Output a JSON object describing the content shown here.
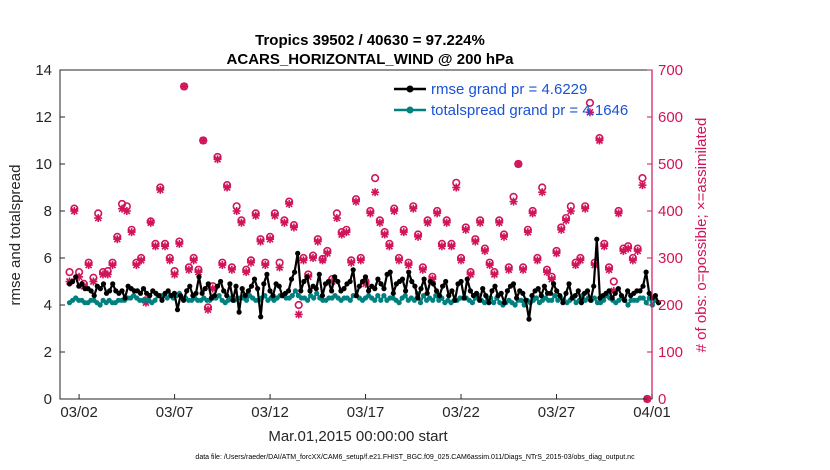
{
  "chart_data": {
    "type": "line",
    "title": "Tropics 39502 / 40630 = 97.224%",
    "subtitle": "ACARS_HORIZONTAL_WIND @ 200 hPa",
    "xlabel": "Mar.01,2015 00:00:00 start",
    "ylabel_left": "rmse and totalspread",
    "ylabel_right": "# of obs: o=possible; ×=assimilated",
    "footnote": "data file: /Users/raeder/DAI/ATM_forcXX/CAM6_setup/f.e21.FHIST_BGC.f09_025.CAM6assim.011/Diags_NTrS_2015-03/obs_diag_output.nc",
    "xlim": [
      1,
      32
    ],
    "ylim_left": [
      0,
      14
    ],
    "ylim_right": [
      0,
      700
    ],
    "x_ticks": [
      2,
      7,
      12,
      17,
      22,
      27,
      32
    ],
    "x_tick_labels": [
      "03/02",
      "03/07",
      "03/12",
      "03/17",
      "03/22",
      "03/27",
      "04/01"
    ],
    "y_ticks_left": [
      0,
      2,
      4,
      6,
      8,
      10,
      12,
      14
    ],
    "y_ticks_right": [
      0,
      100,
      200,
      300,
      400,
      500,
      600,
      700
    ],
    "legend_location": "top-right",
    "colors": {
      "rmse": "#000000",
      "spread": "#00807f",
      "obs": "#d1145a",
      "legend_text": "#1a52d6",
      "axis_right": "#d1145a"
    },
    "series": [
      {
        "name": "rmse grand pr = 4.6229",
        "axis": "left",
        "values": [
          4.9,
          5.0,
          5.2,
          4.8,
          4.9,
          4.7,
          4.7,
          4.6,
          4.4,
          4.8,
          4.7,
          4.9,
          4.5,
          4.6,
          4.9,
          4.6,
          4.5,
          4.6,
          4.3,
          4.8,
          4.7,
          4.6,
          4.6,
          4.5,
          4.7,
          4.5,
          4.4,
          4.6,
          4.5,
          4.4,
          4.2,
          4.5,
          4.6,
          4.4,
          4.5,
          3.8,
          4.4,
          4.2,
          4.6,
          4.8,
          4.4,
          4.5,
          5.2,
          4.5,
          4.7,
          4.9,
          4.3,
          4.4,
          4.8,
          5.0,
          4.6,
          4.4,
          4.9,
          4.2,
          4.8,
          3.7,
          4.7,
          4.4,
          4.6,
          4.8,
          5.1,
          4.7,
          3.5,
          4.9,
          5.3,
          4.6,
          4.4,
          4.9,
          4.8,
          4.4,
          4.5,
          4.6,
          5.1,
          5.4,
          6.2,
          4.6,
          5.0,
          5.2,
          4.6,
          4.8,
          4.7,
          5.3,
          4.4,
          4.9,
          5.0,
          4.6,
          5.2,
          5.0,
          4.6,
          4.7,
          4.9,
          5.0,
          5.5,
          4.4,
          4.8,
          5.0,
          5.2,
          4.6,
          4.8,
          4.7,
          5.1,
          4.9,
          4.7,
          5.3,
          5.4,
          4.5,
          4.9,
          5.0,
          5.1,
          4.6,
          5.4,
          5.0,
          4.8,
          4.3,
          4.7,
          5.1,
          4.5,
          5.0,
          4.9,
          4.6,
          4.4,
          4.8,
          5.0,
          4.4,
          4.6,
          4.2,
          4.9,
          5.0,
          4.3,
          5.1,
          4.6,
          4.4,
          4.5,
          4.2,
          4.7,
          4.4,
          4.1,
          4.6,
          4.8,
          4.4,
          4.5,
          4.1,
          4.6,
          4.8,
          4.9,
          4.3,
          4.6,
          4.5,
          4.2,
          3.4,
          4.4,
          4.6,
          4.7,
          4.4,
          4.8,
          4.5,
          4.5,
          4.9,
          4.6,
          4.4,
          4.1,
          4.5,
          4.9,
          4.3,
          4.4,
          4.6,
          4.1,
          4.5,
          4.6,
          4.2,
          4.8,
          6.8,
          4.3,
          4.4,
          4.5,
          4.6,
          4.3,
          4.5,
          4.7,
          4.4,
          4.2,
          4.6,
          4.4,
          4.5,
          4.6,
          4.6,
          4.8,
          5.4,
          4.5,
          4.3,
          4.4,
          4.1
        ],
        "style": "line+marker"
      },
      {
        "name": "totalspread grand pr = 4.1646",
        "axis": "left",
        "values": [
          4.1,
          4.2,
          4.3,
          4.2,
          4.2,
          4.1,
          4.1,
          4.2,
          4.2,
          4.1,
          4.0,
          4.2,
          4.1,
          4.2,
          4.1,
          4.1,
          4.2,
          4.2,
          4.2,
          4.3,
          4.3,
          4.4,
          4.3,
          4.2,
          4.2,
          4.2,
          4.2,
          4.1,
          4.2,
          4.4,
          4.4,
          4.4,
          4.3,
          4.4,
          4.3,
          4.4,
          4.5,
          4.3,
          4.3,
          4.2,
          4.2,
          4.3,
          4.2,
          4.2,
          4.3,
          4.2,
          4.2,
          4.3,
          4.3,
          4.4,
          4.2,
          4.1,
          4.2,
          4.3,
          4.2,
          4.3,
          4.3,
          4.3,
          4.2,
          4.4,
          4.3,
          4.2,
          4.2,
          4.3,
          4.4,
          4.2,
          4.3,
          4.2,
          4.3,
          4.4,
          4.4,
          4.3,
          4.3,
          4.4,
          4.6,
          4.4,
          4.3,
          4.3,
          4.2,
          4.4,
          4.3,
          4.5,
          4.3,
          4.2,
          4.2,
          4.3,
          4.3,
          4.4,
          4.3,
          4.2,
          4.3,
          4.3,
          4.2,
          4.4,
          4.4,
          4.3,
          4.2,
          4.3,
          4.4,
          4.3,
          4.2,
          4.4,
          4.2,
          4.4,
          4.2,
          4.3,
          4.3,
          4.2,
          4.1,
          4.3,
          4.4,
          4.2,
          4.3,
          4.2,
          4.5,
          4.1,
          4.4,
          4.2,
          4.3,
          4.2,
          4.4,
          4.2,
          4.3,
          4.1,
          4.2,
          4.1,
          4.2,
          4.2,
          4.3,
          4.3,
          4.3,
          4.2,
          4.1,
          4.3,
          4.4,
          4.2,
          4.1,
          4.3,
          4.3,
          4.1,
          4.3,
          4.1,
          4.0,
          4.1,
          4.2,
          4.1,
          4.0,
          4.2,
          4.2,
          4.0,
          4.2,
          4.1,
          4.2,
          4.3,
          4.1,
          4.2,
          4.3,
          4.2,
          4.2,
          4.4,
          4.2,
          4.3,
          4.2,
          4.1,
          4.2,
          4.3,
          4.1,
          4.2,
          4.4,
          4.2,
          4.3,
          4.2,
          4.3,
          4.1,
          4.1,
          4.2,
          4.4,
          4.3,
          4.2,
          4.1,
          4.2,
          4.3,
          4.2,
          4.0,
          4.2,
          4.2,
          4.2,
          4.3,
          4.3,
          4.1,
          4.3,
          4.0,
          4.2,
          4.1
        ],
        "style": "line+marker"
      }
    ],
    "obs_possible": [
      [
        1.5,
        270
      ],
      [
        1.75,
        405
      ],
      [
        2.0,
        270
      ],
      [
        2.25,
        245
      ],
      [
        2.5,
        290
      ],
      [
        2.75,
        258
      ],
      [
        3.0,
        395
      ],
      [
        3.25,
        270
      ],
      [
        3.5,
        272
      ],
      [
        3.75,
        290
      ],
      [
        4.0,
        345
      ],
      [
        4.25,
        415
      ],
      [
        4.5,
        410
      ],
      [
        4.75,
        360
      ],
      [
        5.0,
        290
      ],
      [
        5.25,
        300
      ],
      [
        5.5,
        210
      ],
      [
        5.75,
        378
      ],
      [
        6.0,
        330
      ],
      [
        6.25,
        450
      ],
      [
        6.5,
        330
      ],
      [
        6.75,
        300
      ],
      [
        7.0,
        272
      ],
      [
        7.25,
        335
      ],
      [
        7.5,
        665
      ],
      [
        7.75,
        280
      ],
      [
        8.0,
        300
      ],
      [
        8.25,
        275
      ],
      [
        8.5,
        550
      ],
      [
        8.75,
        195
      ],
      [
        9.0,
        240
      ],
      [
        9.25,
        515
      ],
      [
        9.5,
        290
      ],
      [
        9.75,
        455
      ],
      [
        10.0,
        280
      ],
      [
        10.25,
        410
      ],
      [
        10.5,
        380
      ],
      [
        10.75,
        275
      ],
      [
        11.0,
        295
      ],
      [
        11.25,
        395
      ],
      [
        11.5,
        340
      ],
      [
        11.75,
        290
      ],
      [
        12.0,
        345
      ],
      [
        12.25,
        395
      ],
      [
        12.5,
        290
      ],
      [
        12.75,
        380
      ],
      [
        13.0,
        420
      ],
      [
        13.25,
        370
      ],
      [
        13.5,
        200
      ],
      [
        13.75,
        300
      ],
      [
        14.0,
        265
      ],
      [
        14.25,
        305
      ],
      [
        14.5,
        340
      ],
      [
        14.75,
        298
      ],
      [
        15.0,
        315
      ],
      [
        15.25,
        255
      ],
      [
        15.5,
        395
      ],
      [
        15.75,
        355
      ],
      [
        16.0,
        360
      ],
      [
        16.25,
        295
      ],
      [
        16.5,
        425
      ],
      [
        16.75,
        300
      ],
      [
        17.0,
        250
      ],
      [
        17.25,
        400
      ],
      [
        17.5,
        470
      ],
      [
        17.75,
        380
      ],
      [
        18.0,
        355
      ],
      [
        18.25,
        330
      ],
      [
        18.5,
        405
      ],
      [
        18.75,
        300
      ],
      [
        19.0,
        360
      ],
      [
        19.25,
        290
      ],
      [
        19.5,
        410
      ],
      [
        19.75,
        350
      ],
      [
        20.0,
        280
      ],
      [
        20.25,
        380
      ],
      [
        20.5,
        260
      ],
      [
        20.75,
        400
      ],
      [
        21.0,
        330
      ],
      [
        21.25,
        380
      ],
      [
        21.5,
        330
      ],
      [
        21.75,
        460
      ],
      [
        22.0,
        300
      ],
      [
        22.25,
        365
      ],
      [
        22.5,
        270
      ],
      [
        22.75,
        340
      ],
      [
        23.0,
        380
      ],
      [
        23.25,
        320
      ],
      [
        23.5,
        290
      ],
      [
        23.75,
        270
      ],
      [
        24.0,
        380
      ],
      [
        24.25,
        350
      ],
      [
        24.5,
        280
      ],
      [
        24.75,
        430
      ],
      [
        25.0,
        500
      ],
      [
        25.25,
        280
      ],
      [
        25.5,
        360
      ],
      [
        25.75,
        400
      ],
      [
        26.0,
        300
      ],
      [
        26.25,
        450
      ],
      [
        26.5,
        275
      ],
      [
        26.75,
        260
      ],
      [
        27.0,
        315
      ],
      [
        27.25,
        365
      ],
      [
        27.5,
        385
      ],
      [
        27.75,
        410
      ],
      [
        28.0,
        290
      ],
      [
        28.25,
        300
      ],
      [
        28.5,
        410
      ],
      [
        28.75,
        630
      ],
      [
        29.0,
        290
      ],
      [
        29.25,
        555
      ],
      [
        29.5,
        330
      ],
      [
        29.75,
        280
      ],
      [
        30.0,
        250
      ],
      [
        30.25,
        400
      ],
      [
        30.5,
        320
      ],
      [
        30.75,
        325
      ],
      [
        31.0,
        300
      ],
      [
        31.25,
        320
      ],
      [
        31.5,
        470
      ],
      [
        31.75,
        0
      ]
    ],
    "obs_assimilated": [
      [
        1.5,
        250
      ],
      [
        1.75,
        400
      ],
      [
        2.0,
        260
      ],
      [
        2.25,
        240
      ],
      [
        2.5,
        285
      ],
      [
        2.75,
        250
      ],
      [
        3.0,
        385
      ],
      [
        3.25,
        265
      ],
      [
        3.5,
        265
      ],
      [
        3.75,
        285
      ],
      [
        4.0,
        340
      ],
      [
        4.25,
        405
      ],
      [
        4.5,
        400
      ],
      [
        4.75,
        355
      ],
      [
        5.0,
        285
      ],
      [
        5.25,
        295
      ],
      [
        5.5,
        205
      ],
      [
        5.75,
        375
      ],
      [
        6.0,
        325
      ],
      [
        6.25,
        445
      ],
      [
        6.5,
        325
      ],
      [
        6.75,
        295
      ],
      [
        7.0,
        265
      ],
      [
        7.25,
        330
      ],
      [
        7.5,
        665
      ],
      [
        7.75,
        275
      ],
      [
        8.0,
        295
      ],
      [
        8.25,
        270
      ],
      [
        8.5,
        550
      ],
      [
        8.75,
        190
      ],
      [
        9.0,
        235
      ],
      [
        9.25,
        510
      ],
      [
        9.5,
        285
      ],
      [
        9.75,
        450
      ],
      [
        10.0,
        275
      ],
      [
        10.25,
        400
      ],
      [
        10.5,
        375
      ],
      [
        10.75,
        270
      ],
      [
        11.0,
        290
      ],
      [
        11.25,
        390
      ],
      [
        11.5,
        335
      ],
      [
        11.75,
        285
      ],
      [
        12.0,
        340
      ],
      [
        12.25,
        390
      ],
      [
        12.5,
        280
      ],
      [
        12.75,
        375
      ],
      [
        13.0,
        415
      ],
      [
        13.25,
        365
      ],
      [
        13.5,
        180
      ],
      [
        13.75,
        295
      ],
      [
        14.0,
        260
      ],
      [
        14.25,
        300
      ],
      [
        14.5,
        335
      ],
      [
        14.75,
        295
      ],
      [
        15.0,
        310
      ],
      [
        15.25,
        250
      ],
      [
        15.5,
        385
      ],
      [
        15.75,
        350
      ],
      [
        16.0,
        355
      ],
      [
        16.25,
        290
      ],
      [
        16.5,
        420
      ],
      [
        16.75,
        295
      ],
      [
        17.0,
        245
      ],
      [
        17.25,
        395
      ],
      [
        17.5,
        440
      ],
      [
        17.75,
        375
      ],
      [
        18.0,
        350
      ],
      [
        18.25,
        325
      ],
      [
        18.5,
        400
      ],
      [
        18.75,
        295
      ],
      [
        19.0,
        355
      ],
      [
        19.25,
        285
      ],
      [
        19.5,
        405
      ],
      [
        19.75,
        345
      ],
      [
        20.0,
        275
      ],
      [
        20.25,
        375
      ],
      [
        20.5,
        255
      ],
      [
        20.75,
        395
      ],
      [
        21.0,
        325
      ],
      [
        21.25,
        375
      ],
      [
        21.5,
        325
      ],
      [
        21.75,
        450
      ],
      [
        22.0,
        295
      ],
      [
        22.25,
        360
      ],
      [
        22.5,
        265
      ],
      [
        22.75,
        335
      ],
      [
        23.0,
        375
      ],
      [
        23.25,
        315
      ],
      [
        23.5,
        285
      ],
      [
        23.75,
        265
      ],
      [
        24.0,
        375
      ],
      [
        24.25,
        345
      ],
      [
        24.5,
        275
      ],
      [
        24.75,
        420
      ],
      [
        25.0,
        500
      ],
      [
        25.25,
        275
      ],
      [
        25.5,
        355
      ],
      [
        25.75,
        395
      ],
      [
        26.0,
        295
      ],
      [
        26.25,
        440
      ],
      [
        26.5,
        270
      ],
      [
        26.75,
        255
      ],
      [
        27.0,
        310
      ],
      [
        27.25,
        360
      ],
      [
        27.5,
        380
      ],
      [
        27.75,
        400
      ],
      [
        28.0,
        285
      ],
      [
        28.25,
        295
      ],
      [
        28.5,
        405
      ],
      [
        28.75,
        610
      ],
      [
        29.0,
        285
      ],
      [
        29.25,
        550
      ],
      [
        29.5,
        325
      ],
      [
        29.75,
        275
      ],
      [
        30.0,
        230
      ],
      [
        30.25,
        395
      ],
      [
        30.5,
        315
      ],
      [
        30.75,
        320
      ],
      [
        31.0,
        295
      ],
      [
        31.25,
        315
      ],
      [
        31.5,
        455
      ],
      [
        31.75,
        0
      ]
    ]
  }
}
